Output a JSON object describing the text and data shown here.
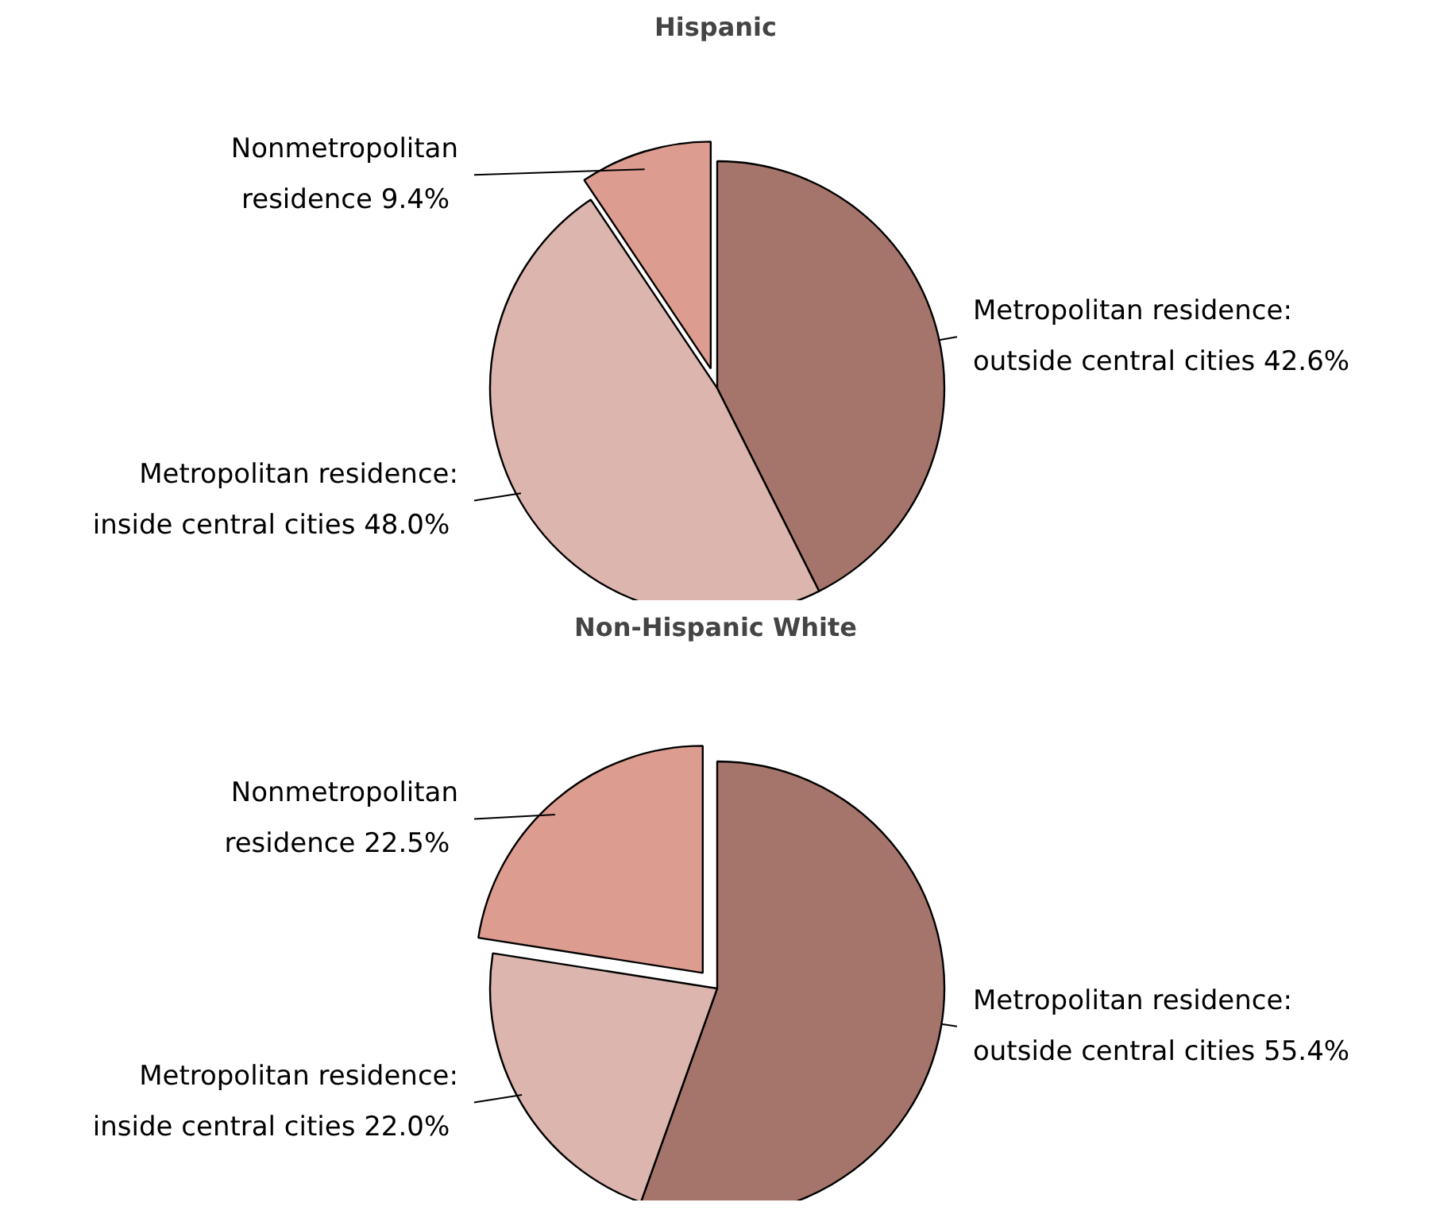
{
  "chart_data": [
    {
      "type": "pie",
      "title": "Hispanic",
      "categories": [
        "Metropolitan residence: outside central cities",
        "Metropolitan residence: inside central cities",
        "Nonmetropolitan residence"
      ],
      "values": [
        42.6,
        48.0,
        9.4
      ],
      "value_labels": [
        "42.6%",
        "48.0%",
        "9.4%"
      ],
      "colors": [
        "#a5756b",
        "#dbb5ae",
        "#dc9c90"
      ]
    },
    {
      "type": "pie",
      "title": "Non-Hispanic White",
      "categories": [
        "Metropolitan residence: outside central cities",
        "Metropolitan residence: inside central cities",
        "Nonmetropolitan residence"
      ],
      "values": [
        55.4,
        22.0,
        22.5
      ],
      "value_labels": [
        "55.4%",
        "22.0%",
        "22.5%"
      ],
      "colors": [
        "#a5756b",
        "#dbb5ae",
        "#dc9c90"
      ]
    }
  ]
}
